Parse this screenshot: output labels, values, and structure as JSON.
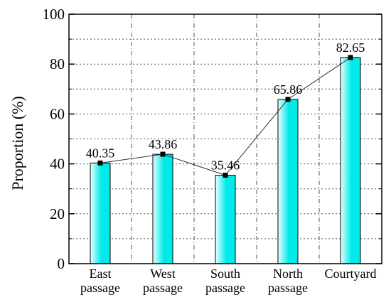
{
  "chart_data": {
    "type": "bar",
    "title": "",
    "xlabel": "",
    "ylabel": "Proportion (%)",
    "ylim": [
      0,
      100
    ],
    "yticks": [
      0,
      20,
      40,
      60,
      80,
      100
    ],
    "categories": [
      [
        "East",
        "passage"
      ],
      [
        "West",
        "passage"
      ],
      [
        "South",
        "passage"
      ],
      [
        "North",
        "passage"
      ],
      [
        "Courtyard"
      ]
    ],
    "values": [
      40.35,
      43.86,
      35.46,
      65.86,
      82.65
    ],
    "value_labels": [
      "40.35",
      "43.86",
      "35.46",
      "65.86",
      "82.65"
    ],
    "overlay_line": true,
    "grid": "dotted-horizontal, dash-dot-vertical",
    "colors": {
      "bar_fill_light": "#e6ffff",
      "bar_fill_dark": "#00eaea",
      "bar_stroke": "#000000",
      "line": "#333333",
      "marker": "#000000",
      "grid": "#555555"
    }
  }
}
